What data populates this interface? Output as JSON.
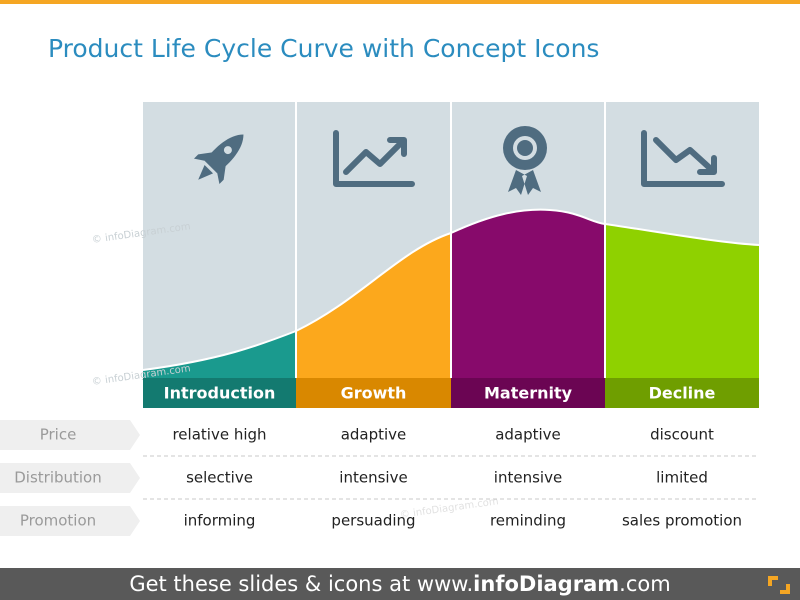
{
  "header": {
    "title": "Product Life Cycle Curve with Concept Icons"
  },
  "stages": [
    "Introduction",
    "Growth",
    "Maternity",
    "Decline"
  ],
  "rows": [
    {
      "label": "Price",
      "values": [
        "relative high",
        "adaptive",
        "adaptive",
        "discount"
      ]
    },
    {
      "label": "Distribution",
      "values": [
        "selective",
        "intensive",
        "intensive",
        "limited"
      ]
    },
    {
      "label": "Promotion",
      "values": [
        "informing",
        "persuading",
        "reminding",
        "sales promotion"
      ]
    }
  ],
  "watermark": "© infoDiagram.com",
  "footer": {
    "prefix": "Get these slides & icons at www.",
    "brand": "infoDiagram",
    "suffix": ".com"
  }
}
